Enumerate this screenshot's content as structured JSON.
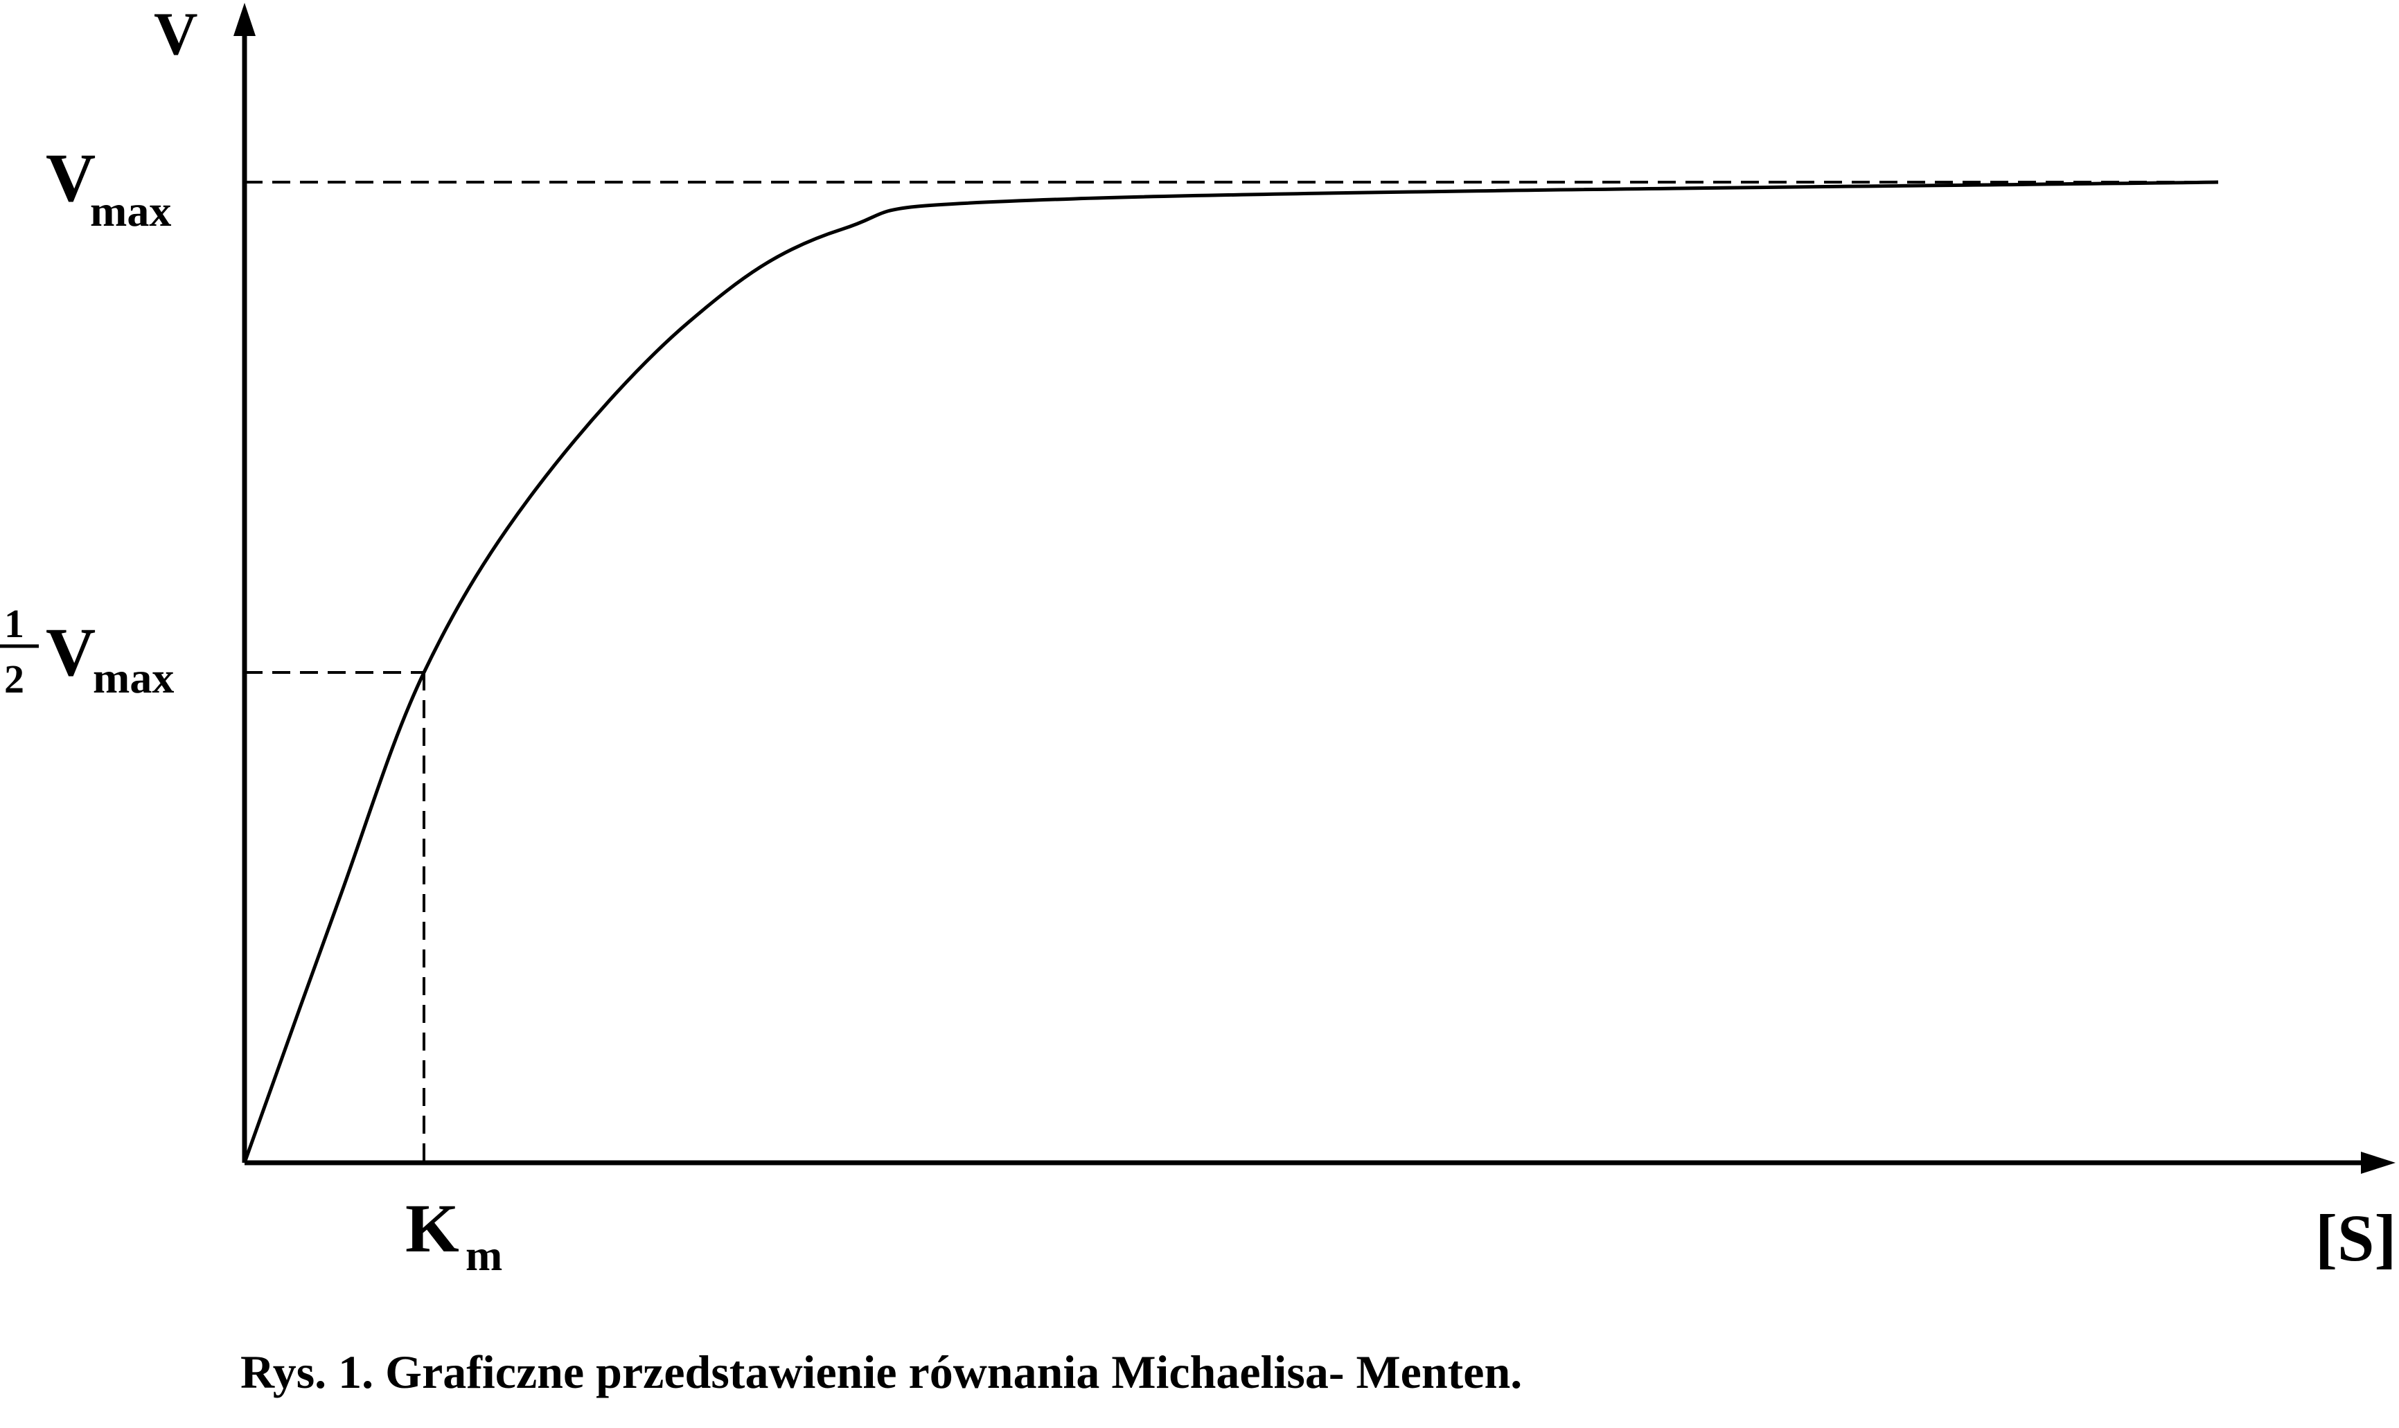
{
  "chart_data": {
    "type": "line",
    "title": "",
    "caption": "Rys. 1. Graficzne przedstawienie równania Michaelisa- Menten.",
    "ylabel": "V",
    "xlabel": "[S]",
    "y_marks": [
      {
        "label_main": "V",
        "label_sub": "max",
        "value": 1.0
      },
      {
        "label_num": "1",
        "label_den": "2",
        "label_main": "V",
        "label_sub": "max",
        "value": 0.5
      }
    ],
    "x_marks": [
      {
        "label_main": "K",
        "label_sub": "m",
        "value": 1.0
      }
    ],
    "xlim": [
      0,
      11.8
    ],
    "ylim": [
      0,
      1.2
    ],
    "grid": false,
    "series": [
      {
        "x": [
          0,
          0.52,
          1.0,
          1.62,
          2.48,
          3.33,
          4.62,
          11.0
        ],
        "y": [
          0,
          0.265,
          0.5,
          0.686,
          0.858,
          0.952,
          0.983,
          1.0
        ]
      }
    ],
    "guide_lines": "dashed",
    "line_color": "#000000"
  }
}
